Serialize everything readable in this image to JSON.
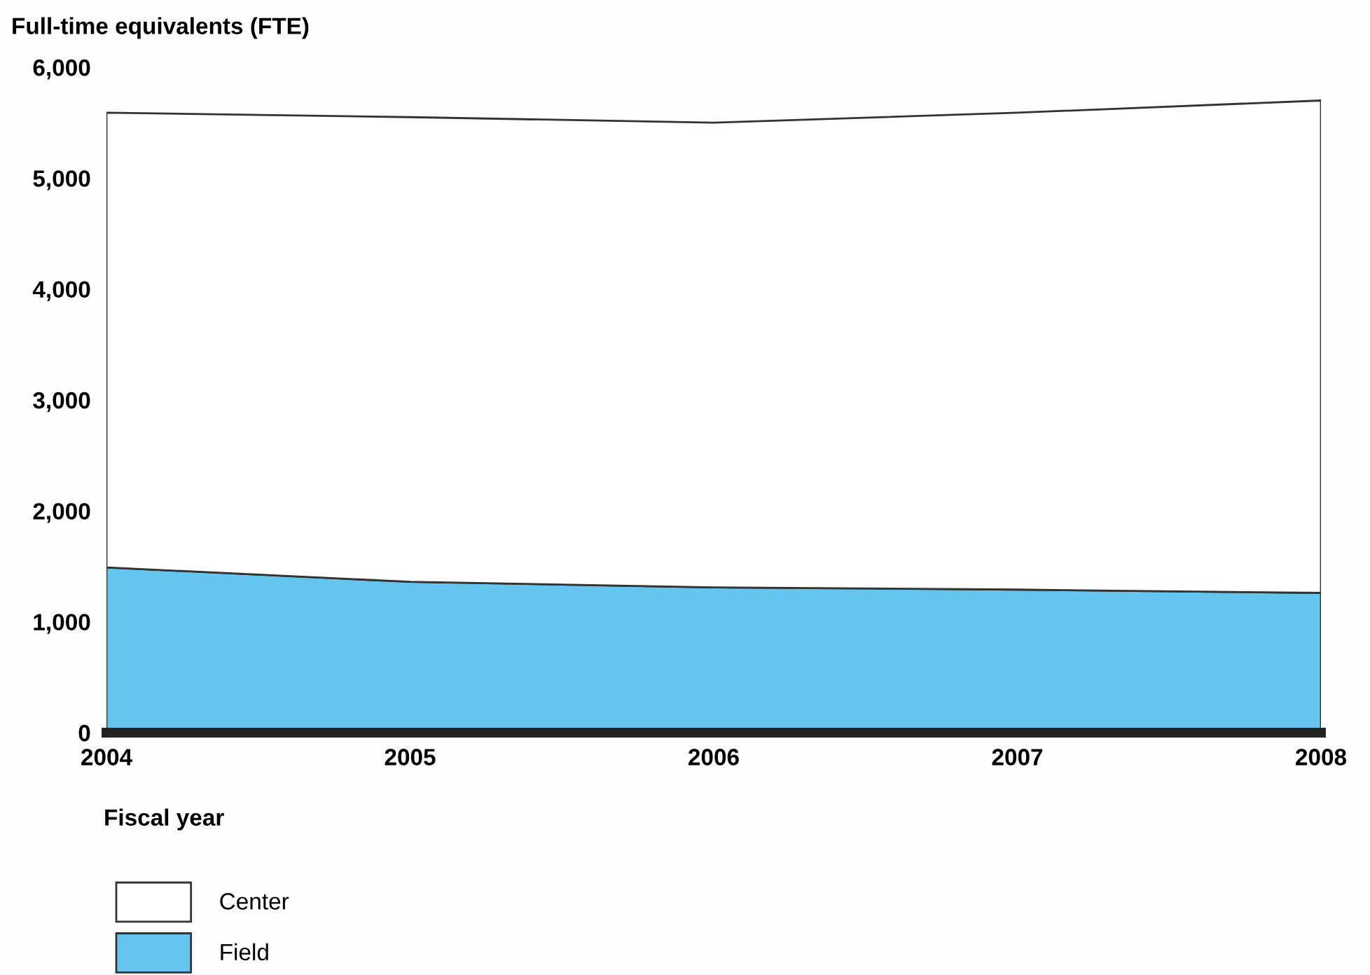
{
  "chart_data": {
    "type": "area",
    "stacked": true,
    "ylabel": "Full-time equivalents (FTE)",
    "xlabel": "Fiscal year",
    "categories": [
      "2004",
      "2005",
      "2006",
      "2007",
      "2008"
    ],
    "series": [
      {
        "name": "Field",
        "color": "#66c5ee",
        "values": [
          1490,
          1360,
          1310,
          1290,
          1260
        ]
      },
      {
        "name": "Center",
        "color": "#ffffff",
        "values": [
          4100,
          4190,
          4190,
          4300,
          4440
        ]
      }
    ],
    "ylim": [
      0,
      6000
    ],
    "yticks": [
      {
        "value": 0,
        "label": "0"
      },
      {
        "value": 1000,
        "label": "1,000"
      },
      {
        "value": 2000,
        "label": "2,000"
      },
      {
        "value": 3000,
        "label": "3,000"
      },
      {
        "value": 4000,
        "label": "4,000"
      },
      {
        "value": 5000,
        "label": "5,000"
      },
      {
        "value": 6000,
        "label": "6,000"
      }
    ],
    "grid": false,
    "legend": "bottom left"
  }
}
